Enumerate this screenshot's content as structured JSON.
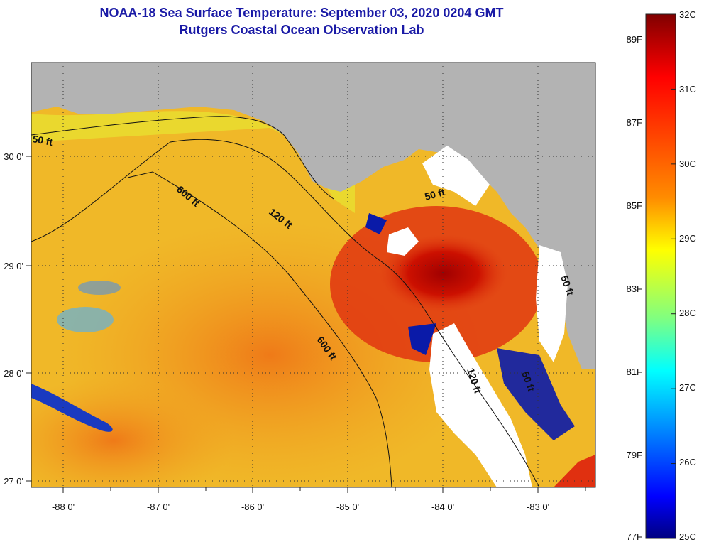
{
  "title": {
    "line1": "NOAA-18 Sea Surface Temperature:  September 03, 2020 0204 GMT",
    "line2": "Rutgers Coastal Ocean Observation Lab"
  },
  "map": {
    "lon_ticks": [
      "-88 0'",
      "-87 0'",
      "-86 0'",
      "-85 0'",
      "-84 0'",
      "-83 0'"
    ],
    "lat_ticks": [
      "30 0'",
      "29 0'",
      "28 0'",
      "27 0'"
    ],
    "contour_labels": [
      "50 ft",
      "120 ft",
      "600 ft",
      "600 ft",
      "50 ft",
      "120 ft",
      "50 ft",
      "50 ft"
    ],
    "colors": {
      "land": "#b3b3b3",
      "cloud": "#ffffff",
      "warm_ocean": "#f28c1e",
      "hot_core": "#a80000",
      "cool_patch": "#0a1aa8",
      "mid_yellow": "#f2e01e"
    }
  },
  "colorbar": {
    "celsius": [
      "32C",
      "31C",
      "30C",
      "29C",
      "28C",
      "27C",
      "26C",
      "25C"
    ],
    "fahrenheit": [
      "89F",
      "87F",
      "85F",
      "83F",
      "81F",
      "79F",
      "77F"
    ],
    "range_c": [
      25,
      32
    ],
    "range_f": [
      77,
      89.6
    ]
  }
}
